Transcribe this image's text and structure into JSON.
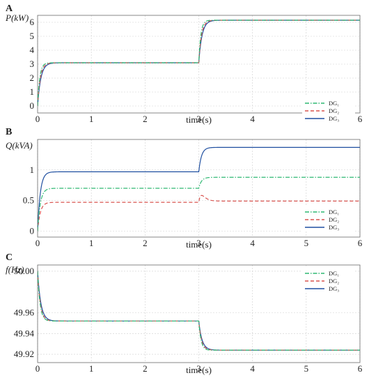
{
  "chart_data": [
    {
      "type": "line",
      "panel_letter": "A",
      "ylabel": "P(kW)",
      "xlabel": "time(s)",
      "xlim": [
        0,
        6
      ],
      "ylim": [
        -0.5,
        6.5
      ],
      "xticks": [
        0,
        1,
        2,
        3,
        4,
        5,
        6
      ],
      "yticks": [
        0,
        1,
        2,
        3,
        4,
        5,
        6
      ],
      "grid": true,
      "legend_position": "right",
      "series": [
        {
          "name": "DG₁",
          "color": "#2eb872",
          "dash": "dashdot",
          "step_time": 0,
          "start": 0,
          "level1": 3.1,
          "level2": 6.15,
          "switch_time": 3,
          "tau": 0.04,
          "overshoot1": 0.02,
          "overshoot2": 0.08
        },
        {
          "name": "DG₂",
          "color": "#d9534f",
          "dash": "dash",
          "step_time": 0,
          "start": 0,
          "level1": 3.1,
          "level2": 6.15,
          "switch_time": 3,
          "tau": 0.05,
          "overshoot1": 0.0,
          "overshoot2": 0.0
        },
        {
          "name": "DG₃",
          "color": "#1f4fa0",
          "dash": "solid",
          "step_time": 0,
          "start": 0,
          "level1": 3.1,
          "level2": 6.15,
          "switch_time": 3,
          "tau": 0.06,
          "overshoot1": 0.0,
          "overshoot2": 0.0
        }
      ]
    },
    {
      "type": "line",
      "panel_letter": "B",
      "ylabel": "Q(kVA)",
      "xlabel": "time(s)",
      "xlim": [
        0,
        6
      ],
      "ylim": [
        -0.1,
        1.5
      ],
      "xticks": [
        0,
        1,
        2,
        3,
        4,
        5,
        6
      ],
      "yticks": [
        0,
        0.5,
        1
      ],
      "grid": true,
      "legend_position": "bottom-right",
      "series": [
        {
          "name": "DG₁",
          "color": "#2eb872",
          "dash": "dashdot",
          "start": 0,
          "level1": 0.7,
          "level2": 0.88,
          "switch_time": 3,
          "tau": 0.05,
          "overshoot1": 0.0,
          "overshoot2": 0.0
        },
        {
          "name": "DG₂",
          "color": "#d9534f",
          "dash": "dash",
          "start": 0,
          "level1": 0.47,
          "level2": 0.49,
          "switch_time": 3,
          "tau": 0.05,
          "overshoot1": 0.0,
          "overshoot2": 0.1
        },
        {
          "name": "DG₃",
          "color": "#1f4fa0",
          "dash": "solid",
          "start": 0,
          "level1": 0.97,
          "level2": 1.37,
          "switch_time": 3,
          "tau": 0.05,
          "overshoot1": 0.0,
          "overshoot2": 0.0
        }
      ]
    },
    {
      "type": "line",
      "panel_letter": "C",
      "ylabel": "f(Hz)",
      "xlabel": "time(s)",
      "xlim": [
        0,
        6
      ],
      "ylim": [
        49.912,
        50.006
      ],
      "xticks": [
        0,
        1,
        2,
        3,
        4,
        5,
        6
      ],
      "yticks": [
        49.92,
        49.94,
        49.96,
        50.0
      ],
      "ytick_labels": [
        "49.92",
        "49.94",
        "49.96",
        "50.00"
      ],
      "grid": true,
      "legend_position": "top-right",
      "series": [
        {
          "name": "DG₁",
          "color": "#2eb872",
          "dash": "dashdot",
          "start": 50.0,
          "level1": 49.952,
          "level2": 49.924,
          "switch_time": 3,
          "tau": 0.05,
          "overshoot1": 0.002,
          "overshoot2": 0.002
        },
        {
          "name": "DG₂",
          "color": "#d9534f",
          "dash": "dash",
          "start": 50.0,
          "level1": 49.952,
          "level2": 49.924,
          "switch_time": 3,
          "tau": 0.05,
          "overshoot1": 0.0,
          "overshoot2": 0.0
        },
        {
          "name": "DG₃",
          "color": "#1f4fa0",
          "dash": "solid",
          "start": 50.0,
          "level1": 49.952,
          "level2": 49.924,
          "switch_time": 3,
          "tau": 0.06,
          "overshoot1": 0.0,
          "overshoot2": 0.0
        }
      ]
    }
  ]
}
